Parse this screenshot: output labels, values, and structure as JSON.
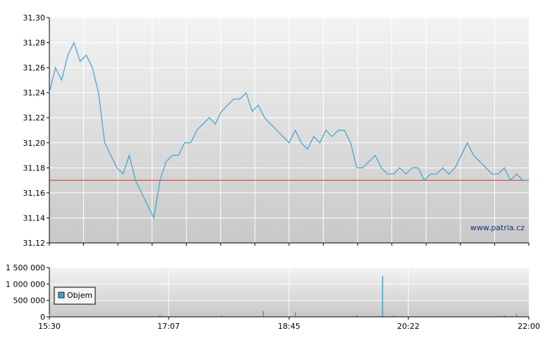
{
  "watermark": "www.patria.cz",
  "colors": {
    "price_line": "#3fa3cf",
    "reference_line": "#cc3322",
    "volume_bar": "#3fa3cf",
    "grid": "#ffffff",
    "panel_top": "#f3f3f3",
    "panel_bottom": "#c8c8c8",
    "axis": "#000000"
  },
  "chart_data": [
    {
      "type": "line",
      "title": "",
      "ylim": [
        31.12,
        31.3
      ],
      "y_ticks": [
        "31,30",
        "31,28",
        "31,26",
        "31,24",
        "31,22",
        "31,20",
        "31,18",
        "31,16",
        "31,14",
        "31,12"
      ],
      "y_tick_values": [
        31.3,
        31.28,
        31.26,
        31.24,
        31.22,
        31.2,
        31.18,
        31.16,
        31.14,
        31.12
      ],
      "x_range_minutes": [
        930,
        1320
      ],
      "grid": true,
      "reference_value": 31.17,
      "series": [
        {
          "x_minutes": [
            930,
            935,
            940,
            945,
            950,
            955,
            960,
            965,
            970,
            975,
            980,
            985,
            990,
            995,
            1000,
            1005,
            1010,
            1015,
            1020,
            1025,
            1030,
            1035,
            1040,
            1045,
            1050,
            1055,
            1060,
            1065,
            1070,
            1075,
            1080,
            1085,
            1090,
            1095,
            1100,
            1105,
            1110,
            1115,
            1120,
            1125,
            1130,
            1135,
            1140,
            1145,
            1150,
            1155,
            1160,
            1165,
            1170,
            1175,
            1180,
            1185,
            1190,
            1195,
            1200,
            1205,
            1210,
            1215,
            1220,
            1225,
            1230,
            1235,
            1240,
            1245,
            1250,
            1255,
            1260,
            1265,
            1270,
            1275,
            1280,
            1285,
            1290,
            1295,
            1300,
            1305,
            1310,
            1315,
            1320
          ],
          "values": [
            31.24,
            31.26,
            31.25,
            31.27,
            31.28,
            31.265,
            31.27,
            31.26,
            31.24,
            31.2,
            31.19,
            31.18,
            31.175,
            31.19,
            31.17,
            31.16,
            31.15,
            31.14,
            31.17,
            31.185,
            31.19,
            31.19,
            31.2,
            31.2,
            31.21,
            31.215,
            31.22,
            31.215,
            31.225,
            31.23,
            31.235,
            31.235,
            31.24,
            31.225,
            31.23,
            31.22,
            31.215,
            31.21,
            31.205,
            31.2,
            31.21,
            31.2,
            31.195,
            31.205,
            31.2,
            31.21,
            31.205,
            31.21,
            31.21,
            31.2,
            31.18,
            31.18,
            31.185,
            31.19,
            31.18,
            31.175,
            31.175,
            31.18,
            31.175,
            31.18,
            31.18,
            31.17,
            31.175,
            31.175,
            31.18,
            31.175,
            31.18,
            31.19,
            31.2,
            31.19,
            31.185,
            31.18,
            31.175,
            31.175,
            31.18,
            31.17,
            31.175,
            31.17,
            31.17
          ]
        }
      ]
    },
    {
      "type": "bar",
      "title": "",
      "ylim": [
        0,
        1500000
      ],
      "y_ticks": [
        "1 500 000",
        "1 000 000",
        "500 000",
        "0"
      ],
      "y_tick_values": [
        1500000,
        1000000,
        500000,
        0
      ],
      "x_ticks": [
        "15:30",
        "17:07",
        "18:45",
        "20:22",
        "22:00"
      ],
      "x_tick_values": [
        930,
        1027,
        1125,
        1222,
        1320
      ],
      "legend": [
        "Objem"
      ],
      "legend_position": "left",
      "series": [
        {
          "name": "Objem",
          "x_minutes": [
            930,
            1020,
            1070,
            1104,
            1130,
            1180,
            1201,
            1210,
            1300,
            1310
          ],
          "values": [
            80000,
            60000,
            40000,
            180000,
            140000,
            60000,
            1250000,
            40000,
            50000,
            90000
          ]
        }
      ]
    }
  ]
}
